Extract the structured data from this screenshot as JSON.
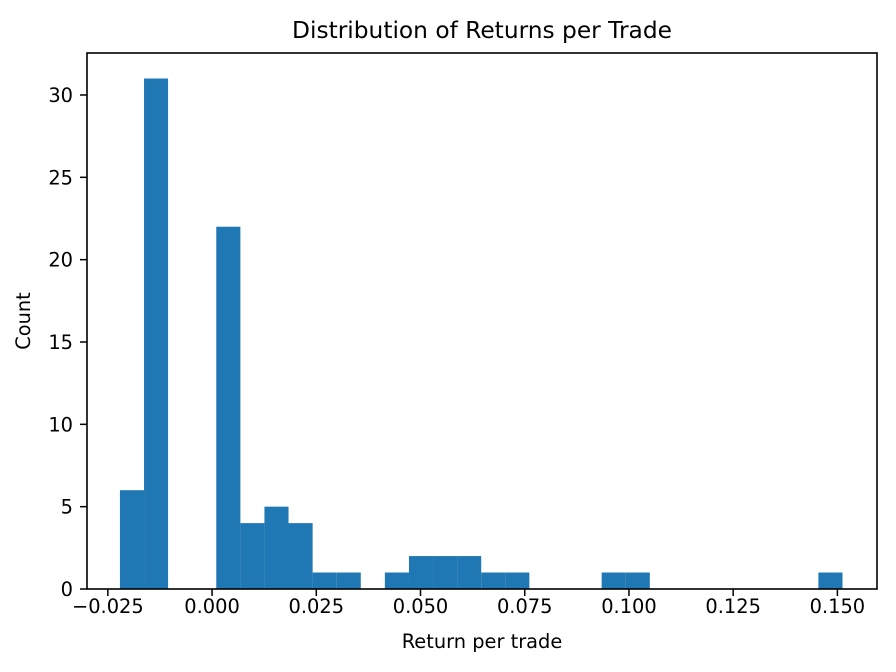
{
  "figure": {
    "background_color": "#ffffff",
    "text_color": "#000000",
    "spine_color": "#000000"
  },
  "chart_data": {
    "type": "bar",
    "subtype": "histogram",
    "title": "Distribution of Returns per Trade",
    "xlabel": "Return per trade",
    "ylabel": "Count",
    "bar_color": "#1f77b4",
    "grid": false,
    "legend": null,
    "bins": 30,
    "bin_edges": [
      -0.0221,
      -0.01632,
      -0.01055,
      -0.00477,
      0.00101,
      0.00679,
      0.01256,
      0.01834,
      0.02412,
      0.0299,
      0.03567,
      0.04145,
      0.04723,
      0.05301,
      0.05878,
      0.06456,
      0.07034,
      0.07611,
      0.08189,
      0.08767,
      0.09345,
      0.09922,
      0.105,
      0.11078,
      0.11655,
      0.12233,
      0.12811,
      0.13389,
      0.13966,
      0.14544,
      0.15122
    ],
    "counts": [
      6,
      31,
      0,
      0,
      22,
      4,
      5,
      4,
      1,
      1,
      0,
      1,
      2,
      2,
      2,
      1,
      1,
      0,
      0,
      0,
      1,
      1,
      0,
      0,
      0,
      0,
      0,
      0,
      0,
      1
    ],
    "total_count": 86,
    "xlim": [
      -0.03,
      0.1595
    ],
    "ylim": [
      0,
      32.55
    ],
    "xticks": [
      -0.025,
      0.0,
      0.025,
      0.05,
      0.075,
      0.1,
      0.125,
      0.15
    ],
    "xtick_labels": [
      "−0.025",
      "0.000",
      "0.025",
      "0.050",
      "0.075",
      "0.100",
      "0.125",
      "0.150"
    ],
    "yticks": [
      0,
      5,
      10,
      15,
      20,
      25,
      30
    ],
    "ytick_labels": [
      "0",
      "5",
      "10",
      "15",
      "20",
      "25",
      "30"
    ]
  }
}
